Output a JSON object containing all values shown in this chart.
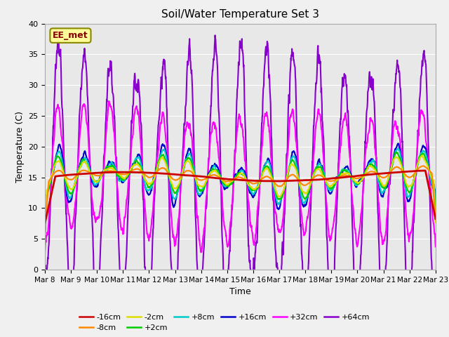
{
  "title": "Soil/Water Temperature Set 3",
  "xlabel": "Time",
  "ylabel": "Temperature (C)",
  "ylim": [
    0,
    40
  ],
  "yticks": [
    0,
    5,
    10,
    15,
    20,
    25,
    30,
    35,
    40
  ],
  "annotation_text": "EE_met",
  "bg_color": "#e8e8e8",
  "fig_bg": "#f0f0f0",
  "series_order": [
    "-16cm",
    "-8cm",
    "-2cm",
    "+2cm",
    "+8cm",
    "+16cm",
    "+32cm",
    "+64cm"
  ],
  "series": {
    "-16cm": {
      "color": "#cc0000",
      "lw": 2.0
    },
    "-8cm": {
      "color": "#ff8800",
      "lw": 1.5
    },
    "-2cm": {
      "color": "#dddd00",
      "lw": 1.5
    },
    "+2cm": {
      "color": "#00cc00",
      "lw": 1.5
    },
    "+8cm": {
      "color": "#00cccc",
      "lw": 1.5
    },
    "+16cm": {
      "color": "#0000cc",
      "lw": 1.5
    },
    "+32cm": {
      "color": "#ff00ff",
      "lw": 1.5
    },
    "+64cm": {
      "color": "#8800cc",
      "lw": 1.5
    }
  },
  "n_days": 15,
  "n_points": 1500,
  "seed": 7
}
